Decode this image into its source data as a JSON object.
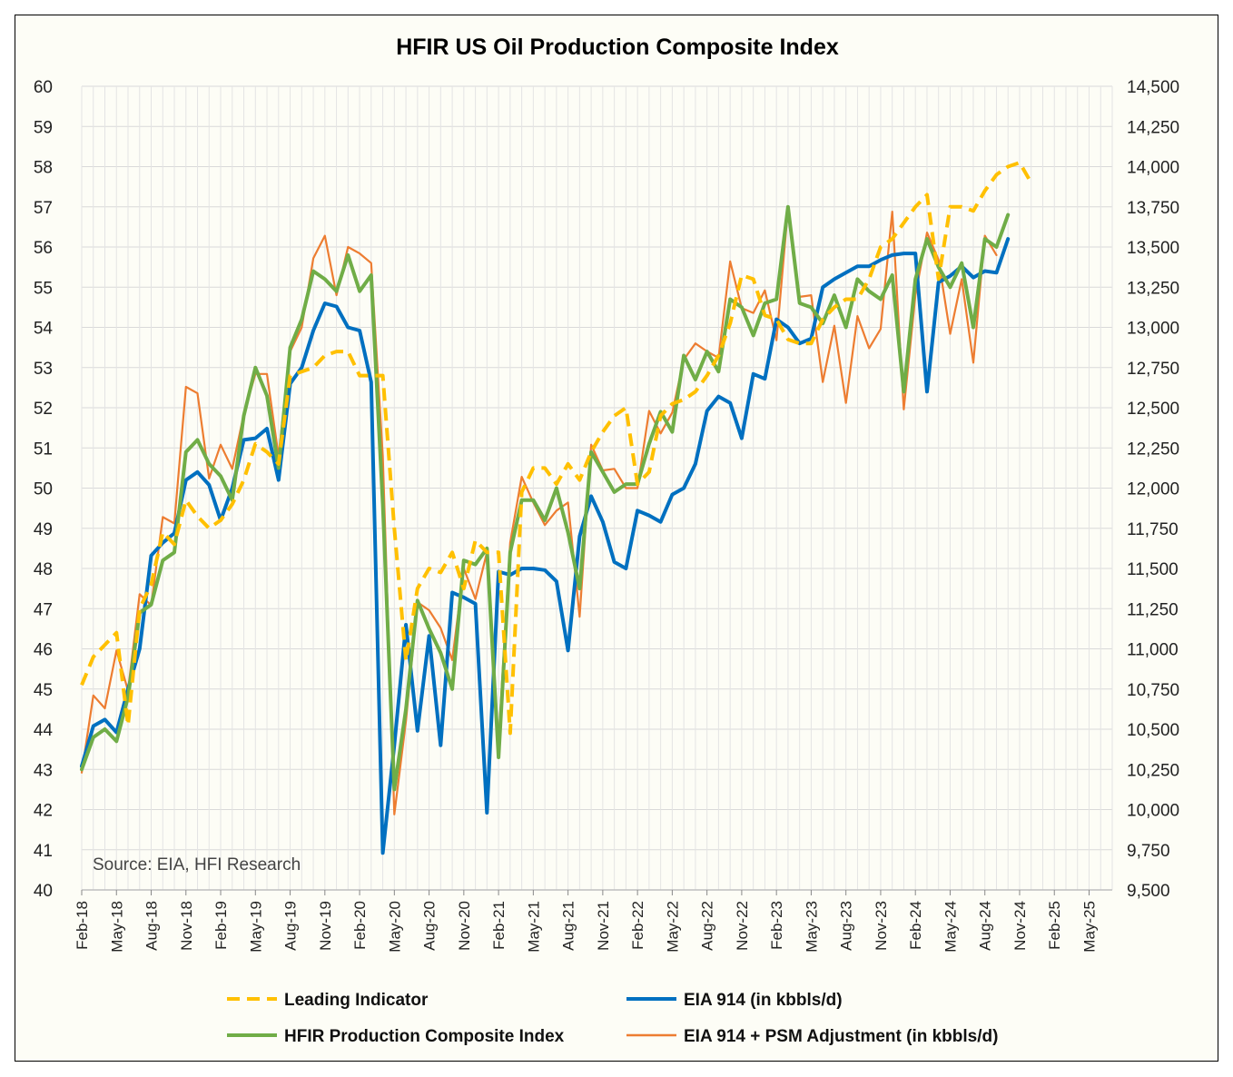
{
  "chart_data": {
    "type": "line",
    "title": "HFIR US Oil Production Composite Index",
    "annotation": "Source: EIA, HFI Research",
    "y_left": {
      "min": 40,
      "max": 60,
      "step": 1,
      "ticks": [
        "40",
        "41",
        "42",
        "43",
        "44",
        "45",
        "46",
        "47",
        "48",
        "49",
        "50",
        "51",
        "52",
        "53",
        "54",
        "55",
        "56",
        "57",
        "58",
        "59",
        "60"
      ]
    },
    "y_right": {
      "min": 9500,
      "max": 14500,
      "step": 250,
      "ticks": [
        "9,500",
        "9,750",
        "10,000",
        "10,250",
        "10,500",
        "10,750",
        "11,000",
        "11,250",
        "11,500",
        "11,750",
        "12,000",
        "12,250",
        "12,500",
        "12,750",
        "13,000",
        "13,250",
        "13,500",
        "13,750",
        "14,000",
        "14,250",
        "14,500"
      ]
    },
    "x_ticks": [
      "Feb-18",
      "May-18",
      "Aug-18",
      "Nov-18",
      "Feb-19",
      "May-19",
      "Aug-19",
      "Nov-19",
      "Feb-20",
      "May-20",
      "Aug-20",
      "Nov-20",
      "Feb-21",
      "May-21",
      "Aug-21",
      "Nov-21",
      "Feb-22",
      "May-22",
      "Aug-22",
      "Nov-22",
      "Feb-23",
      "May-23",
      "Aug-23",
      "Nov-23",
      "Feb-24",
      "May-24",
      "Aug-24",
      "Nov-24",
      "Feb-25",
      "May-25"
    ],
    "x_start": "Feb-18",
    "x_end": "Jul-25",
    "legend_position": "bottom",
    "series": [
      {
        "name": "Leading Indicator",
        "axis": "left",
        "color": "#FFC000",
        "style": "dashed",
        "start": "Feb-18",
        "values": [
          45.1,
          45.8,
          46.1,
          46.4,
          44.1,
          47.0,
          47.6,
          48.9,
          48.6,
          49.7,
          49.3,
          49.0,
          49.2,
          49.6,
          50.2,
          51.1,
          50.9,
          50.6,
          52.8,
          52.9,
          53.0,
          53.3,
          53.4,
          53.4,
          52.8,
          52.8,
          52.8,
          49.0,
          45.7,
          47.5,
          48.0,
          47.9,
          48.4,
          47.5,
          48.7,
          48.4,
          48.4,
          43.9,
          49.9,
          50.5,
          50.5,
          50.1,
          50.6,
          50.2,
          50.9,
          51.4,
          51.8,
          52.0,
          50.1,
          50.4,
          51.8,
          52.1,
          52.2,
          52.4,
          52.8,
          53.3,
          54.1,
          55.3,
          55.2,
          54.3,
          54.2,
          53.7,
          53.6,
          53.6,
          54.2,
          54.5,
          54.7,
          54.7,
          55.2,
          56.0,
          56.2,
          56.6,
          57.0,
          57.3,
          55.2,
          57.0,
          57.0,
          56.9,
          57.4,
          57.8,
          58.0,
          58.1,
          57.6
        ]
      },
      {
        "name": "EIA 914 (in kbbls/d)",
        "axis": "right",
        "color": "#0070C0",
        "style": "solid",
        "start": "Feb-18",
        "values": [
          10270,
          10520,
          10560,
          10480,
          10750,
          11000,
          11580,
          11660,
          11720,
          12050,
          12100,
          12020,
          11800,
          12000,
          12300,
          12310,
          12370,
          12050,
          12650,
          12750,
          12980,
          13150,
          13130,
          13000,
          12980,
          12660,
          9730,
          10400,
          11150,
          10490,
          11080,
          10400,
          11350,
          11320,
          11280,
          9980,
          11480,
          11460,
          11500,
          11500,
          11490,
          11420,
          10990,
          11700,
          11950,
          11790,
          11540,
          11500,
          11860,
          11830,
          11790,
          11960,
          12000,
          12150,
          12480,
          12570,
          12530,
          12310,
          12710,
          12680,
          13050,
          13000,
          12900,
          12930,
          13250,
          13300,
          13340,
          13380,
          13380,
          13420,
          13450,
          13460,
          13460,
          12600,
          13280,
          13320,
          13380,
          13310,
          13350,
          13340,
          13550
        ]
      },
      {
        "name": "HFIR Production Composite Index",
        "axis": "left",
        "color": "#70AD47",
        "style": "solid",
        "start": "Feb-18",
        "values": [
          43.0,
          43.8,
          44.0,
          43.7,
          44.8,
          46.9,
          47.1,
          48.2,
          48.4,
          50.9,
          51.2,
          50.6,
          50.3,
          49.7,
          51.8,
          53.0,
          52.3,
          50.5,
          53.5,
          54.2,
          55.4,
          55.2,
          54.9,
          55.8,
          54.9,
          55.3,
          49.6,
          42.5,
          44.5,
          47.2,
          46.5,
          45.9,
          45.0,
          48.2,
          48.1,
          48.5,
          43.3,
          48.4,
          49.7,
          49.7,
          49.2,
          50.0,
          48.9,
          47.5,
          50.9,
          50.4,
          49.9,
          50.1,
          50.1,
          51.1,
          51.9,
          51.4,
          53.3,
          52.7,
          53.4,
          52.9,
          54.7,
          54.5,
          53.8,
          54.6,
          54.7,
          57.0,
          54.6,
          54.5,
          54.1,
          54.8,
          54.0,
          55.2,
          54.9,
          54.7,
          55.3,
          52.4,
          55.2,
          56.2,
          55.5,
          55.0,
          55.6,
          54.0,
          56.2,
          56.0,
          56.8
        ]
      },
      {
        "name": "EIA 914 + PSM Adjustment (in kbbls/d)",
        "axis": "right",
        "color": "#ED7D31",
        "style": "solid",
        "start": "Feb-18",
        "values": [
          10230,
          10710,
          10630,
          10990,
          10740,
          11340,
          11270,
          11820,
          11780,
          12630,
          12590,
          12060,
          12270,
          12120,
          12460,
          12710,
          12710,
          12200,
          12850,
          13000,
          13430,
          13570,
          13200,
          13500,
          13460,
          13400,
          12200,
          9970,
          10550,
          11290,
          11240,
          11130,
          10930,
          11500,
          11310,
          11600,
          10420,
          11660,
          12070,
          11910,
          11770,
          11860,
          11910,
          11200,
          12270,
          12110,
          12120,
          12000,
          12000,
          12480,
          12340,
          12470,
          12800,
          12900,
          12850,
          12810,
          13410,
          13120,
          13090,
          13230,
          12920,
          13740,
          13190,
          13200,
          12660,
          13010,
          12530,
          13070,
          12870,
          12990,
          13720,
          12490,
          13200,
          13590,
          13420,
          12960,
          13300,
          12780,
          13570,
          13450
        ]
      }
    ]
  }
}
